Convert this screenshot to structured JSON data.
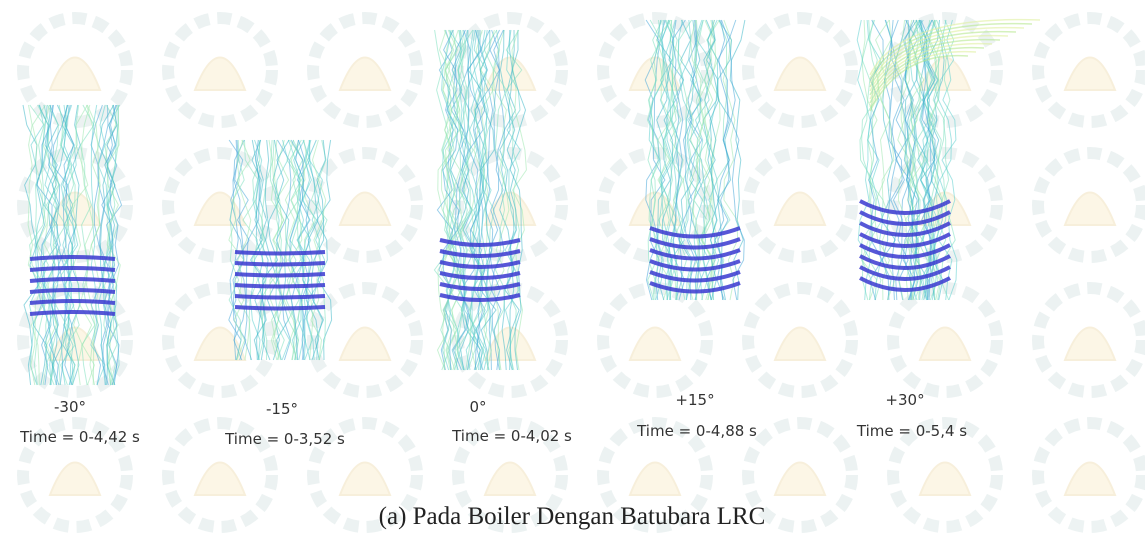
{
  "panels": [
    {
      "angle": "-30°",
      "time": "Time = 0-4,42 s"
    },
    {
      "angle": "-15°",
      "time": "Time = 0-3,52 s"
    },
    {
      "angle": "0°",
      "time": "Time = 0-4,02 s"
    },
    {
      "angle": "+15°",
      "time": "Time = 0-4,88 s"
    },
    {
      "angle": "+30°",
      "time": "Time = 0-5,4 s"
    }
  ],
  "caption": "(a)  Pada Boiler Dengan Batubara LRC"
}
